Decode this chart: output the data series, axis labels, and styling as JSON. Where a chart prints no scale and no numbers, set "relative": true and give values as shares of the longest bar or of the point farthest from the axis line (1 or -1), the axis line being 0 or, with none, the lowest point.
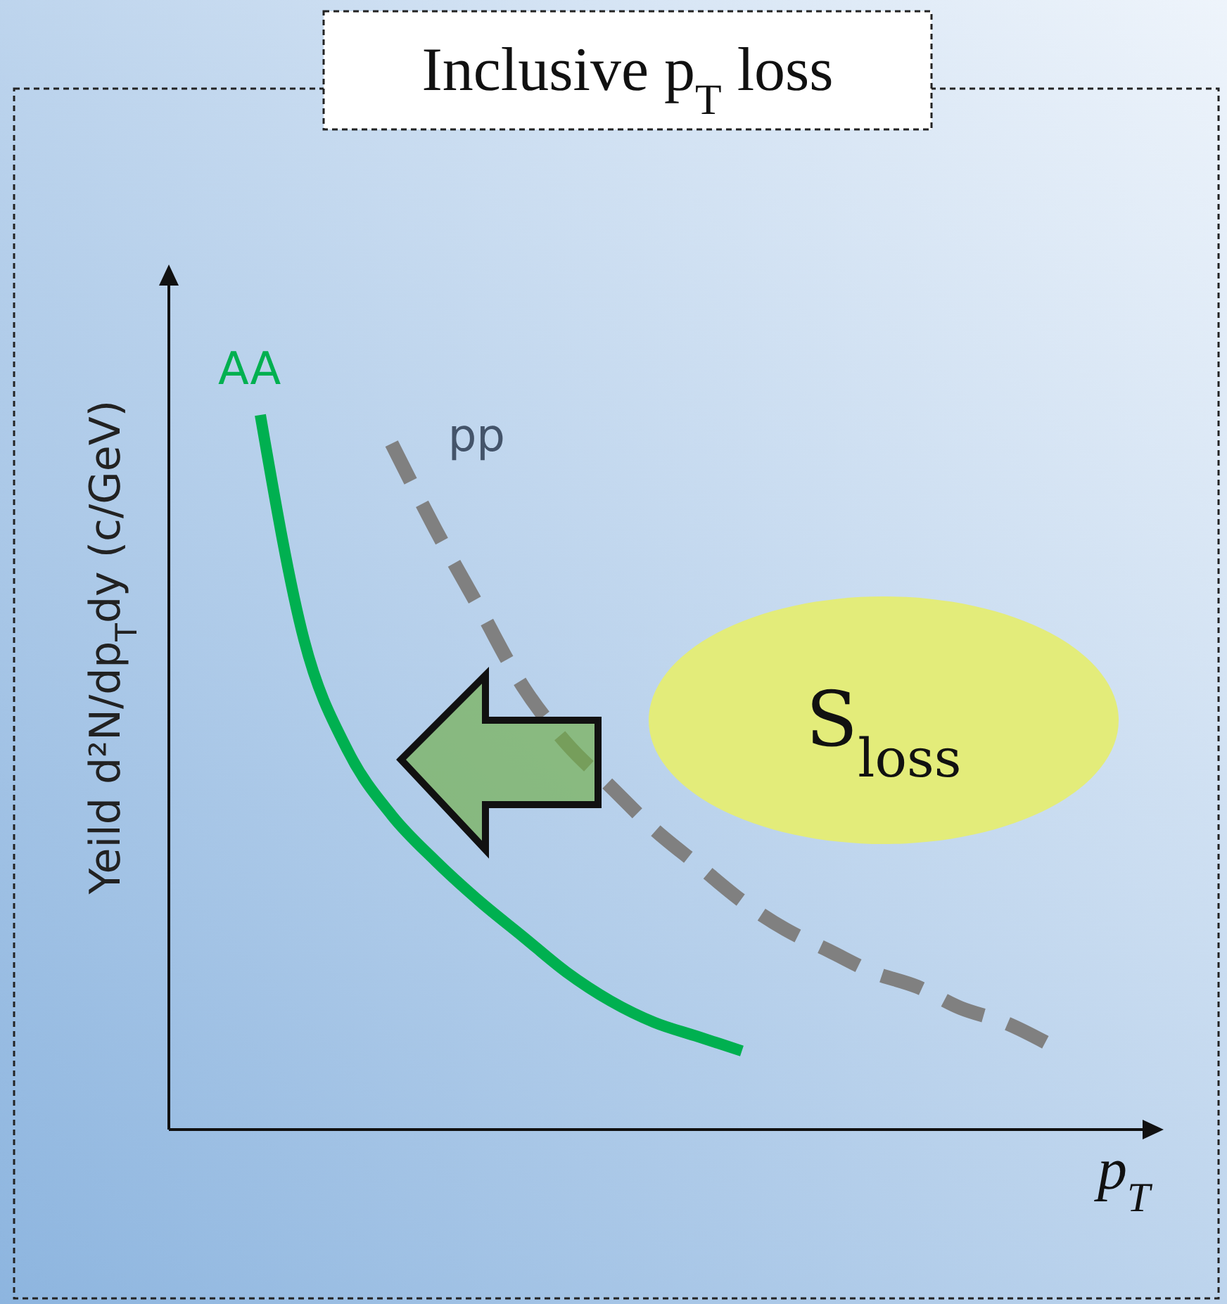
{
  "chart_data": {
    "type": "line",
    "relative": true,
    "title": "Inclusive p$_{T}$ loss",
    "xlabel": "p$_{T}$",
    "ylabel": "Yeild d²N/dp$_{T}$dy (c/GeV)",
    "categories": [
      null,
      null,
      null,
      null,
      null,
      null,
      null,
      null,
      null,
      null,
      null,
      null,
      null,
      null,
      null,
      null,
      null,
      null,
      null
    ],
    "series": [
      {
        "name": "AA",
        "color": "#00b050",
        "line_style": "solid",
        "values": [
          1.0,
          0.685,
          0.53,
          0.44,
          0.376,
          0.32,
          0.27,
          0.22,
          0.18,
          0.15,
          0.13,
          0.11,
          null,
          null,
          null,
          null,
          null,
          null,
          null
        ]
      },
      {
        "name": "pp",
        "color": "#808080",
        "line_style": "dashed",
        "values": [
          null,
          null,
          null,
          0.96,
          0.84,
          0.73,
          0.62,
          0.54,
          0.48,
          0.42,
          0.37,
          0.32,
          0.28,
          0.25,
          0.22,
          0.2,
          0.17,
          0.15,
          0.12
        ]
      }
    ],
    "annotations": [
      "S$_{loss}$"
    ]
  }
}
